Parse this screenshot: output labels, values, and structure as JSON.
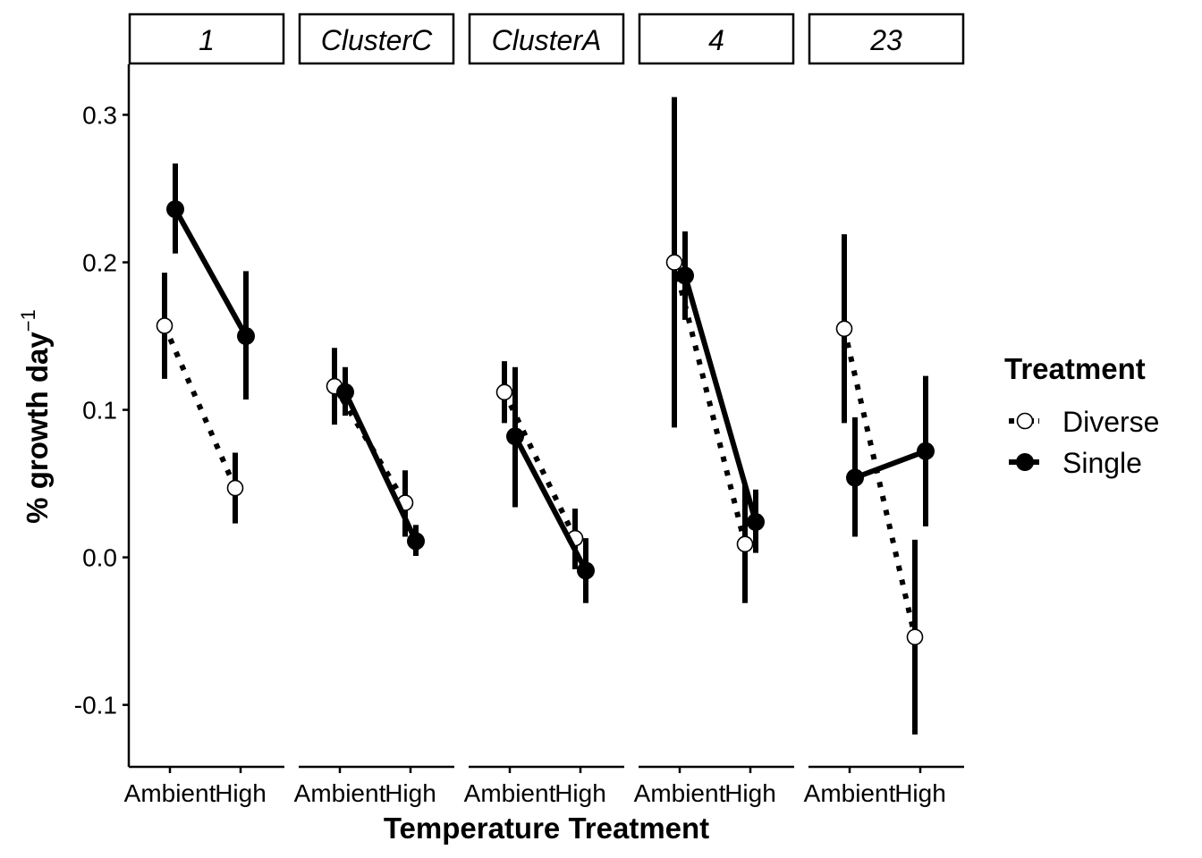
{
  "chart_data": {
    "type": "line",
    "facets": [
      "1",
      "ClusterC",
      "ClusterA",
      "4",
      "23"
    ],
    "categories": [
      "Ambient",
      "High"
    ],
    "xlabel": "Temperature Treatment",
    "ylabel": "% growth day",
    "ylabel_superscript": "−1",
    "ylim": [
      -0.142,
      0.333
    ],
    "yticks": [
      -0.1,
      0.0,
      0.1,
      0.2,
      0.3
    ],
    "ytick_labels": [
      "-0.1",
      "0.0",
      "0.1",
      "0.2",
      "0.3"
    ],
    "grid": false,
    "legend": {
      "title": "Treatment",
      "position": "right",
      "entries": [
        "Diverse",
        "Single"
      ]
    },
    "series": [
      {
        "name": "Diverse",
        "marker": "open-circle",
        "line": "dotted",
        "panels": [
          {
            "facet": "1",
            "mean": [
              0.157,
              0.047
            ],
            "lower": [
              0.121,
              0.023
            ],
            "upper": [
              0.193,
              0.071
            ]
          },
          {
            "facet": "ClusterC",
            "mean": [
              0.116,
              0.037
            ],
            "lower": [
              0.09,
              0.014
            ],
            "upper": [
              0.142,
              0.059
            ]
          },
          {
            "facet": "ClusterA",
            "mean": [
              0.112,
              0.013
            ],
            "lower": [
              0.091,
              -0.008
            ],
            "upper": [
              0.133,
              0.033
            ]
          },
          {
            "facet": "4",
            "mean": [
              0.2,
              0.009
            ],
            "lower": [
              0.088,
              -0.031
            ],
            "upper": [
              0.312,
              0.049
            ]
          },
          {
            "facet": "23",
            "mean": [
              0.155,
              -0.054
            ],
            "lower": [
              0.091,
              -0.12
            ],
            "upper": [
              0.219,
              0.012
            ]
          }
        ]
      },
      {
        "name": "Single",
        "marker": "filled-circle",
        "line": "solid",
        "panels": [
          {
            "facet": "1",
            "mean": [
              0.236,
              0.15
            ],
            "lower": [
              0.206,
              0.107
            ],
            "upper": [
              0.267,
              0.194
            ]
          },
          {
            "facet": "ClusterC",
            "mean": [
              0.112,
              0.011
            ],
            "lower": [
              0.096,
              0.001
            ],
            "upper": [
              0.129,
              0.022
            ]
          },
          {
            "facet": "ClusterA",
            "mean": [
              0.082,
              -0.009
            ],
            "lower": [
              0.034,
              -0.031
            ],
            "upper": [
              0.129,
              0.013
            ]
          },
          {
            "facet": "4",
            "mean": [
              0.191,
              0.024
            ],
            "lower": [
              0.161,
              0.003
            ],
            "upper": [
              0.221,
              0.046
            ]
          },
          {
            "facet": "23",
            "mean": [
              0.054,
              0.072
            ],
            "lower": [
              0.014,
              0.021
            ],
            "upper": [
              0.095,
              0.123
            ]
          }
        ]
      }
    ]
  }
}
